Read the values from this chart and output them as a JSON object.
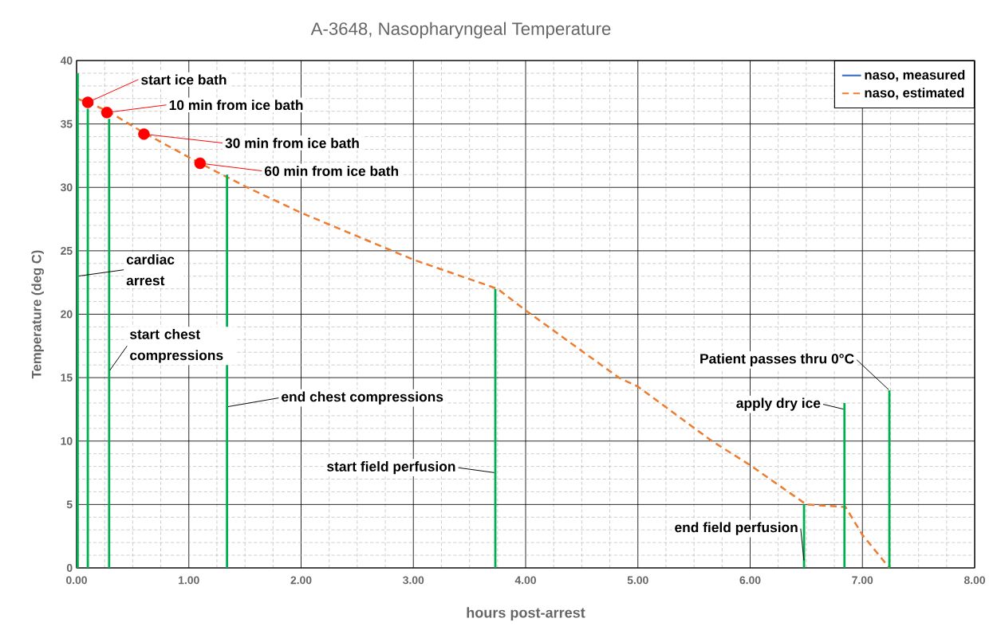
{
  "chart_data": {
    "type": "line",
    "title": "A-3648, Nasopharyngeal Temperature",
    "xlabel": "hours post-arrest",
    "ylabel": "Temperature (deg C)",
    "series": [
      {
        "name": "naso, measured",
        "color": "#4472c4",
        "line_style": "solid",
        "marker": "none"
      },
      {
        "name": "naso, estimated",
        "color": "#ed7d31",
        "x": [
          0,
          0.1,
          0.28,
          0.6,
          1.1,
          1.52,
          2,
          3,
          3.75,
          4,
          4.83,
          5,
          5.66,
          6,
          6.5,
          6.85,
          7.0,
          7.24
        ],
        "values": [
          37,
          36.7,
          36,
          34.3,
          31.9,
          30,
          28,
          24.3,
          22,
          20.3,
          15,
          14.3,
          10,
          8.1,
          5,
          4.8,
          2.6,
          0
        ],
        "line_style": "dashed",
        "marker": "none"
      },
      {
        "type": "bar",
        "color": "#00b050",
        "x": [
          0.01,
          0.1,
          0.29,
          1.34,
          3.73,
          6.48,
          6.84,
          7.24
        ],
        "values": [
          39,
          36.2,
          35.4,
          31,
          22,
          5,
          13,
          14
        ]
      },
      {
        "type": "scatter",
        "color": "#ff0000",
        "x": [
          0.1,
          0.27,
          0.6,
          1.1
        ],
        "values": [
          36.7,
          35.9,
          34.2,
          31.9
        ],
        "marker": "circle"
      }
    ],
    "xlim": [
      0,
      8
    ],
    "ylim": [
      0,
      40
    ],
    "xticks": [
      {
        "value": 0,
        "label": "0.00"
      },
      {
        "value": 1,
        "label": "1.00"
      },
      {
        "value": 2,
        "label": "2.00"
      },
      {
        "value": 3,
        "label": "3.00"
      },
      {
        "value": 4,
        "label": "4.00"
      },
      {
        "value": 5,
        "label": "5.00"
      },
      {
        "value": 6,
        "label": "6.00"
      },
      {
        "value": 7,
        "label": "7.00"
      },
      {
        "value": 8,
        "label": "8.00"
      }
    ],
    "yticks": [
      0,
      5,
      10,
      15,
      20,
      25,
      30,
      35,
      40
    ],
    "grid": true,
    "legend": "top right",
    "annotations": [
      {
        "text": "start ice bath",
        "x": 0.1,
        "y": 36.7
      },
      {
        "text": "10 min from ice bath",
        "x": 0.27,
        "y": 35.9
      },
      {
        "text": "30 min from ice bath",
        "x": 0.6,
        "y": 34.2
      },
      {
        "text": "60 min from ice bath",
        "x": 1.1,
        "y": 31.9
      },
      {
        "text": "cardiac arrest",
        "x": 0.01,
        "y": 23
      },
      {
        "text": "start chest compressions",
        "x": 0.29,
        "y": 15.5
      },
      {
        "text": "end chest compressions",
        "x": 1.34,
        "y": 12.7
      },
      {
        "text": "start field perfusion",
        "x": 3.73,
        "y": 7.5
      },
      {
        "text": "end field perfusion",
        "x": 6.48,
        "y": 0.5
      },
      {
        "text": "apply dry ice",
        "x": 6.84,
        "y": 12.5
      },
      {
        "text": "Patient passes thru 0°C",
        "x": 7.24,
        "y": 14
      }
    ]
  }
}
